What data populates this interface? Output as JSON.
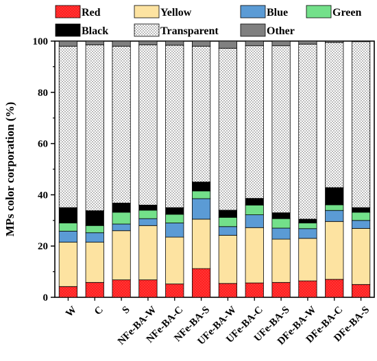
{
  "chart_data": {
    "type": "bar",
    "stacked": true,
    "ylabel": "MPs color corporation (%)",
    "ylim": [
      0,
      100
    ],
    "yticks": [
      "0",
      "20",
      "40",
      "60",
      "80",
      "100"
    ],
    "categories": [
      "W",
      "C",
      "S",
      "NFe-BA-W",
      "NFe-BA-C",
      "NFe-BA-S",
      "UFe-BA-W",
      "UFe-BA-C",
      "UFe-BA-S",
      "DFe-BA-W",
      "DFe-BA-C",
      "DFe-BA-S"
    ],
    "legend_position": "top",
    "series": [
      {
        "name": "Red",
        "color": "#ff2020",
        "pattern": "dots",
        "values": [
          4.2,
          5.8,
          6.8,
          6.8,
          5.2,
          11.2,
          5.4,
          5.6,
          5.8,
          6.4,
          7.0,
          5.0
        ]
      },
      {
        "name": "Yellow",
        "color": "#fde3a1",
        "values": [
          17.3,
          15.7,
          19.2,
          21.2,
          18.3,
          19.3,
          18.8,
          21.6,
          16.9,
          16.6,
          22.6,
          21.9
        ]
      },
      {
        "name": "Blue",
        "color": "#5b9bd5",
        "values": [
          4.3,
          3.7,
          2.6,
          2.7,
          5.5,
          8.0,
          3.4,
          5.0,
          4.3,
          3.8,
          4.3,
          3.1
        ]
      },
      {
        "name": "Green",
        "color": "#73e08a",
        "values": [
          3.2,
          2.8,
          4.6,
          3.3,
          3.4,
          3.0,
          3.6,
          3.8,
          3.7,
          2.2,
          2.2,
          3.2
        ]
      },
      {
        "name": "Black",
        "color": "#000000",
        "values": [
          6.0,
          5.8,
          3.6,
          2.0,
          2.6,
          3.5,
          2.8,
          2.6,
          2.3,
          1.5,
          6.7,
          1.8
        ]
      },
      {
        "name": "Transparent",
        "color": "#ffffff",
        "pattern": "dots",
        "values": [
          63.0,
          64.7,
          61.2,
          62.5,
          63.4,
          53.0,
          63.2,
          59.6,
          65.2,
          68.3,
          56.7,
          64.8
        ]
      },
      {
        "name": "Other",
        "color": "#808080",
        "values": [
          2.0,
          1.5,
          2.0,
          1.5,
          1.6,
          2.0,
          2.8,
          1.8,
          1.8,
          1.2,
          0.5,
          0.2
        ]
      }
    ]
  }
}
